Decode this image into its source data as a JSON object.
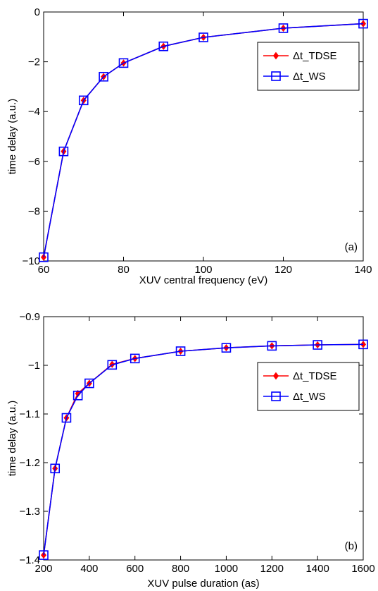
{
  "colors": {
    "tdse": "#ff0000",
    "ws": "#0000ff",
    "axes": "#000000",
    "background": "#ffffff"
  },
  "chart_data": [
    {
      "type": "line",
      "panel_tag": "(a)",
      "xlabel": "XUV central frequency (eV)",
      "ylabel": "time delay (a.u.)",
      "xlim": [
        60,
        140
      ],
      "ylim": [
        -10,
        0
      ],
      "xticks": [
        60,
        80,
        100,
        120,
        140
      ],
      "yticks": [
        0,
        -2,
        -4,
        -6,
        -8,
        -10
      ],
      "xtick_labels": [
        "60",
        "80",
        "100",
        "120",
        "140"
      ],
      "ytick_labels": [
        "0",
        "−2",
        "−4",
        "−6",
        "−8",
        "−10"
      ],
      "grid": false,
      "legend_position": "top-right",
      "x": [
        60,
        65,
        70,
        75,
        80,
        90,
        100,
        120,
        140
      ],
      "series": [
        {
          "name": "Δt_TDSE",
          "marker": "diamond",
          "color": "#ff0000",
          "values": [
            -9.85,
            -5.6,
            -3.55,
            -2.6,
            -2.05,
            -1.38,
            -1.02,
            -0.65,
            -0.47
          ]
        },
        {
          "name": "Δt_WS",
          "marker": "square",
          "color": "#0000ff",
          "values": [
            -9.85,
            -5.6,
            -3.55,
            -2.6,
            -2.05,
            -1.38,
            -1.02,
            -0.65,
            -0.47
          ]
        }
      ]
    },
    {
      "type": "line",
      "panel_tag": "(b)",
      "xlabel": "XUV pulse duration (as)",
      "ylabel": "time delay (a.u.)",
      "xlim": [
        200,
        1600
      ],
      "ylim": [
        -1.4,
        -0.9
      ],
      "xticks": [
        200,
        400,
        600,
        800,
        1000,
        1200,
        1400,
        1600
      ],
      "yticks": [
        -0.9,
        -1,
        -1.1,
        -1.2,
        -1.3,
        -1.4
      ],
      "xtick_labels": [
        "200",
        "400",
        "600",
        "800",
        "1000",
        "1200",
        "1400",
        "1600"
      ],
      "ytick_labels": [
        "−0.9",
        "−1",
        "−1.1",
        "−1.2",
        "−1.3",
        "−1.4"
      ],
      "grid": false,
      "legend_position": "top-right",
      "x": [
        200,
        250,
        300,
        350,
        400,
        500,
        600,
        800,
        1000,
        1200,
        1400,
        1600
      ],
      "series": [
        {
          "name": "Δt_TDSE",
          "marker": "diamond",
          "color": "#ff0000",
          "values": [
            -1.39,
            -1.212,
            -1.108,
            -1.058,
            -1.037,
            -0.998,
            -0.986,
            -0.971,
            -0.964,
            -0.96,
            -0.958,
            -0.957
          ]
        },
        {
          "name": "Δt_WS",
          "marker": "square",
          "color": "#0000ff",
          "values": [
            -1.39,
            -1.212,
            -1.108,
            -1.062,
            -1.037,
            -0.999,
            -0.986,
            -0.971,
            -0.964,
            -0.96,
            -0.958,
            -0.957
          ]
        }
      ]
    }
  ]
}
